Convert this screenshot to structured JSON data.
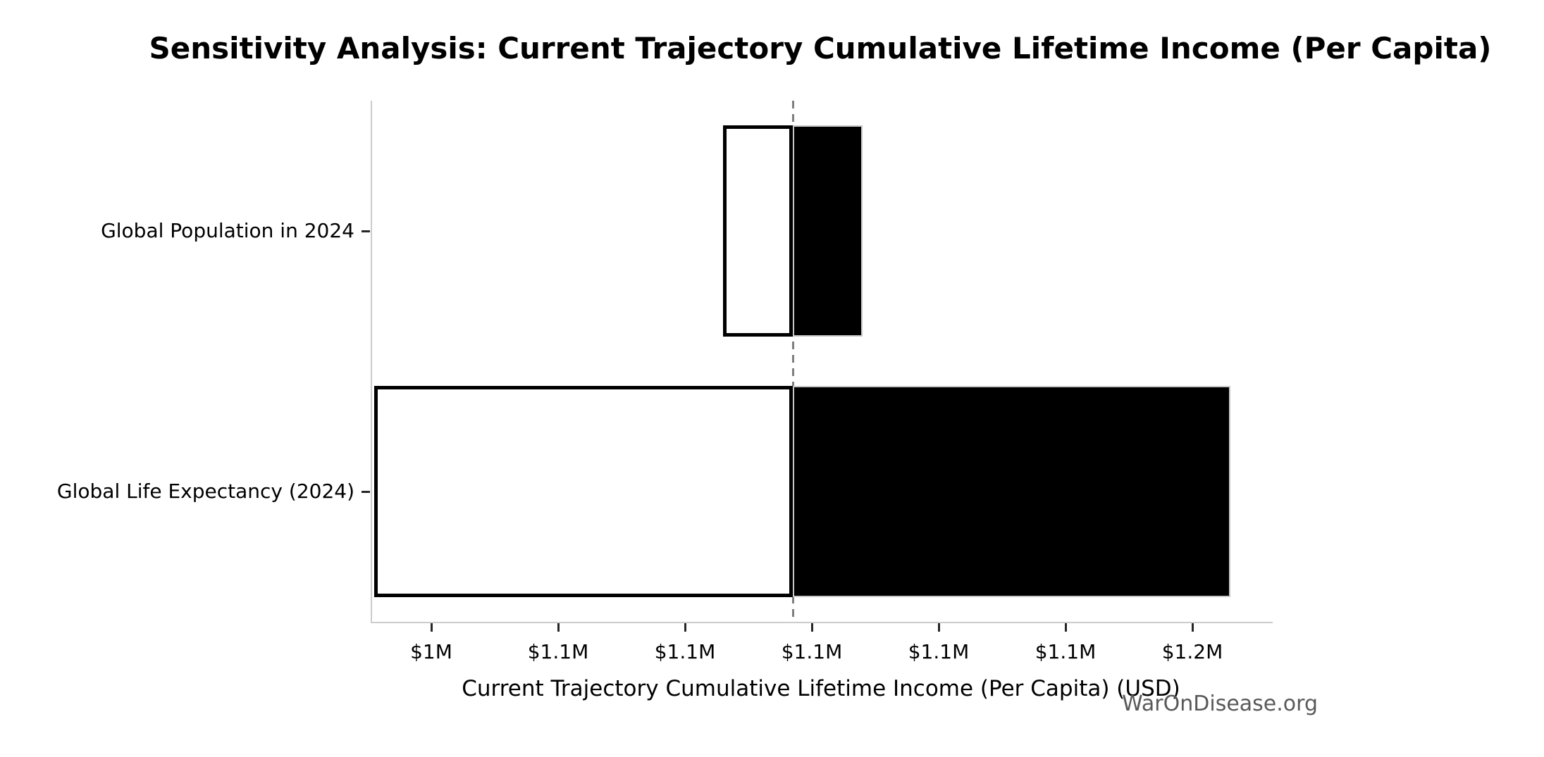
{
  "figure": {
    "watermark": "WarOnDisease.org"
  },
  "chart_data": {
    "type": "bar",
    "subtype": "tornado-sensitivity",
    "orientation": "horizontal",
    "title": "Sensitivity Analysis: Current Trajectory Cumulative Lifetime Income (Per Capita)",
    "xlabel": "Current Trajectory Cumulative Lifetime Income (Per Capita) (USD)",
    "ylabel": "",
    "unit": "USD millions",
    "grid": false,
    "legend": null,
    "categories": [
      "Global Population in 2024",
      "Global Life Expectancy (2024)"
    ],
    "baseline": 1.097,
    "bars": [
      {
        "category": "Global Population in 2024",
        "low": 1.086,
        "high": 1.108
      },
      {
        "category": "Global Life Expectancy (2024)",
        "low": 1.031,
        "high": 1.166
      }
    ],
    "xlim": [
      1.0305,
      1.1724
    ],
    "xticks": [
      {
        "value": 1.04,
        "label": "$1M"
      },
      {
        "value": 1.06,
        "label": "$1.1M"
      },
      {
        "value": 1.08,
        "label": "$1.1M"
      },
      {
        "value": 1.1,
        "label": "$1.1M"
      },
      {
        "value": 1.12,
        "label": "$1.1M"
      },
      {
        "value": 1.14,
        "label": "$1.1M"
      },
      {
        "value": 1.16,
        "label": "$1.2M"
      }
    ],
    "styles": {
      "low_fill": "#ffffff",
      "low_edge": "#000000",
      "high_fill": "#000000",
      "high_edge": "#c8c8c8",
      "baseline_color": "#7f7f7f",
      "spine_color": "#cccccc",
      "tick_color": "#262626",
      "text_color": "#000000",
      "watermark_color": "#595959"
    }
  }
}
